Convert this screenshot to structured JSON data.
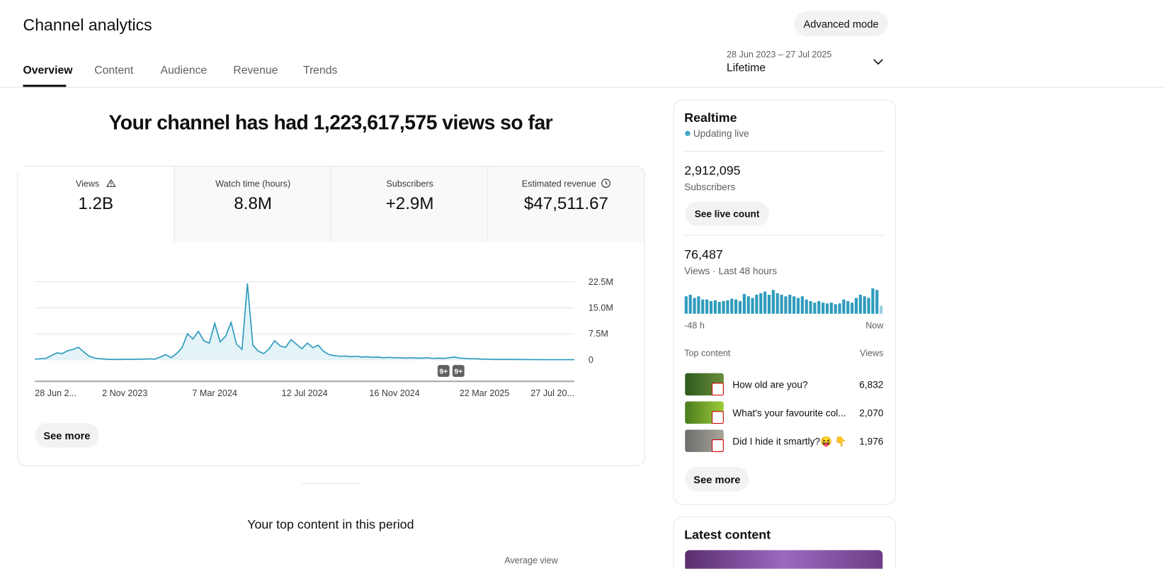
{
  "header": {
    "title": "Channel analytics",
    "advanced_mode": "Advanced mode",
    "tabs": [
      "Overview",
      "Content",
      "Audience",
      "Revenue",
      "Trends"
    ],
    "date_range": "28 Jun 2023 – 27 Jul 2025",
    "period": "Lifetime"
  },
  "headline": "Your channel has had 1,223,617,575 views so far",
  "metrics": [
    {
      "label": "Views",
      "value": "1.2B"
    },
    {
      "label": "Watch time (hours)",
      "value": "8.8M"
    },
    {
      "label": "Subscribers",
      "value": "+2.9M"
    },
    {
      "label": "Estimated revenue",
      "value": "$47,511.67"
    }
  ],
  "views_chart": {
    "type": "line",
    "color": "#2f9bbd",
    "ylim": [
      0,
      22500000
    ],
    "yticks": [
      0,
      {
        "value": 7500000,
        "label": "7.5M"
      },
      {
        "value": 15000000,
        "label": "15.0M"
      },
      {
        "value": 22500000,
        "label": "22.5M"
      }
    ],
    "xlabels": [
      "28 Jun 2...",
      "2 Nov 2023",
      "7 Mar 2024",
      "12 Jul 2024",
      "16 Nov 2024",
      "22 Mar 2025",
      "27 Jul 20..."
    ],
    "values": [
      200000,
      300000,
      400000,
      1200000,
      2000000,
      1800000,
      2600000,
      3000000,
      3600000,
      2200000,
      1000000,
      500000,
      300000,
      200000,
      100000,
      100000,
      100000,
      200000,
      100000,
      200000,
      200000,
      300000,
      200000,
      800000,
      1500000,
      600000,
      1800000,
      3500000,
      7500000,
      6000000,
      8200000,
      5500000,
      4800000,
      10500000,
      5200000,
      6800000,
      10800000,
      4500000,
      3000000,
      22000000,
      4200000,
      2500000,
      1800000,
      3200000,
      5500000,
      4000000,
      3600000,
      5800000,
      4500000,
      3200000,
      4800000,
      3500000,
      4200000,
      2400000,
      1500000,
      1200000,
      1000000,
      1100000,
      900000,
      1000000,
      800000,
      900000,
      700000,
      800000,
      600000,
      700000,
      600000,
      600000,
      500000,
      600000,
      500000,
      500000,
      600000,
      400000,
      500000,
      400000,
      600000,
      800000,
      500000,
      400000,
      300000,
      300000,
      200000,
      200000,
      100000,
      100000,
      100000,
      100000,
      100000,
      80000,
      80000,
      60000,
      60000,
      50000,
      50000,
      50000,
      50000,
      50000,
      50000,
      50000
    ],
    "annotations": [
      "9+",
      "9+"
    ]
  },
  "see_more": "See more",
  "top_content_heading": "Your top content in this period",
  "table_header": "Average view",
  "realtime": {
    "title": "Realtime",
    "status": "Updating live",
    "subscribers": "2,912,095",
    "subscribers_label": "Subscribers",
    "live_count_button": "See live count",
    "views": "76,487",
    "views_label": "Views · Last 48 hours",
    "chart": {
      "type": "bar",
      "color": "#2f9bbd",
      "values": [
        1540,
        1680,
        1400,
        1540,
        1260,
        1260,
        1120,
        1190,
        1050,
        1120,
        1190,
        1330,
        1260,
        1120,
        1750,
        1540,
        1400,
        1680,
        1820,
        1960,
        1680,
        2100,
        1820,
        1680,
        1540,
        1680,
        1540,
        1400,
        1540,
        1260,
        1120,
        980,
        1120,
        980,
        910,
        980,
        840,
        910,
        1260,
        1120,
        980,
        1400,
        1680,
        1540,
        1400,
        2240,
        2100,
        700
      ],
      "start_label": "-48 h",
      "end_label": "Now"
    },
    "top_content_label": "Top content",
    "views_column": "Views",
    "top_content": [
      {
        "title": "How old are you?",
        "views": "6,832"
      },
      {
        "title": "What's your favourite col...",
        "views": "2,070"
      },
      {
        "title": "Did I hide it smartly?😝 👇",
        "views": "1,976"
      }
    ],
    "see_more": "See more"
  },
  "latest_content": {
    "title": "Latest content"
  }
}
